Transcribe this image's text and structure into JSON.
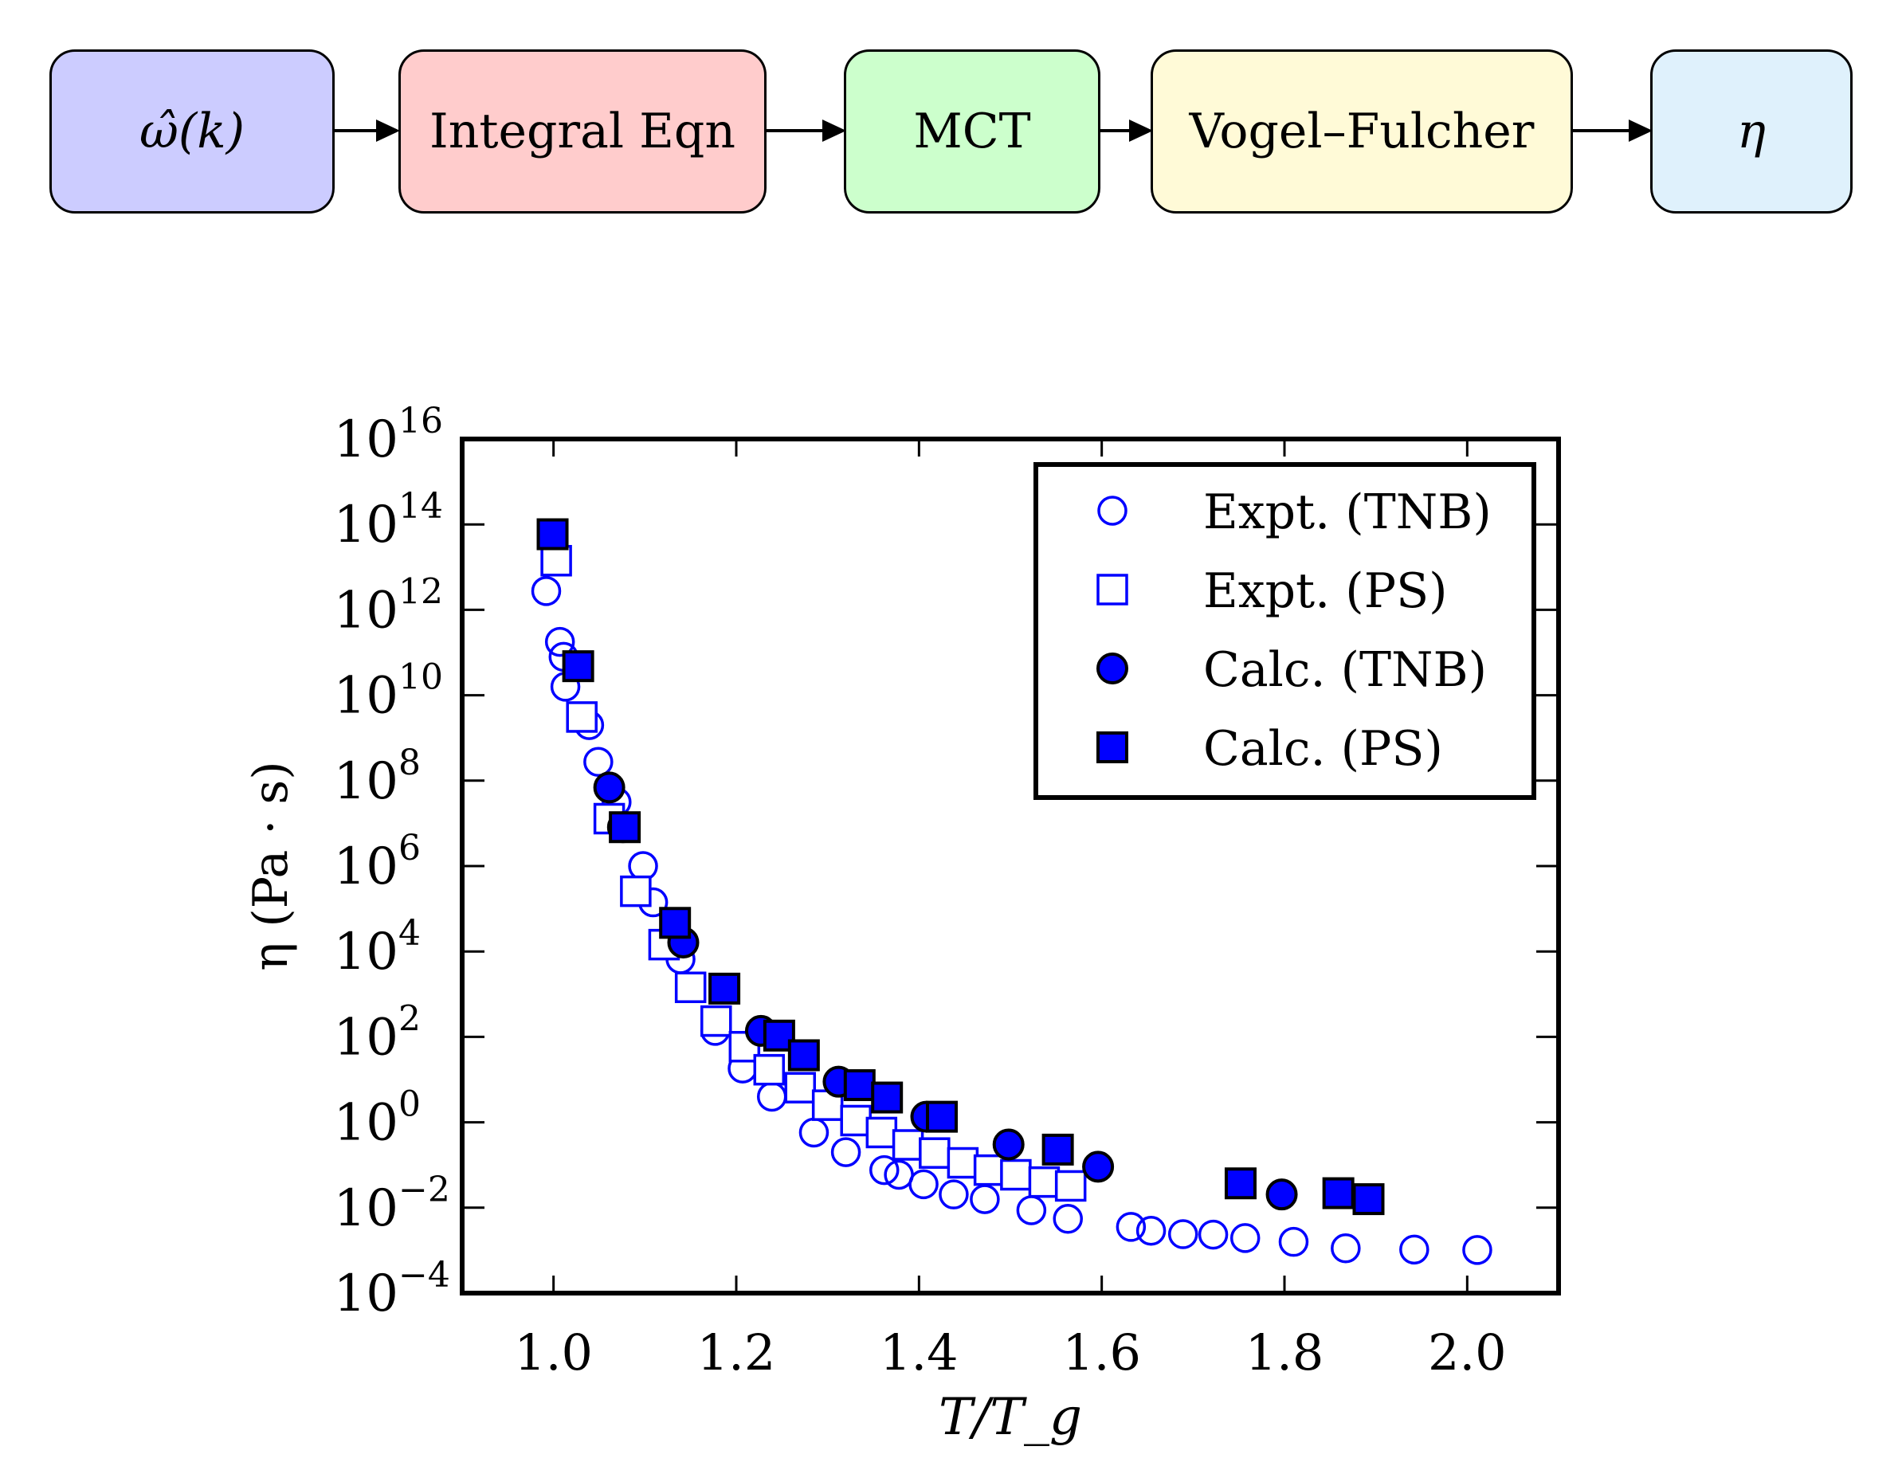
{
  "flow": {
    "nodes": [
      {
        "label": "ω̂(k)",
        "color": "#ccccff"
      },
      {
        "label": "Integral Eqn",
        "color": "#ffcccc"
      },
      {
        "label": "MCT",
        "color": "#ccffcc"
      },
      {
        "label": "Vogel–Fulcher",
        "color": "#fffad7"
      },
      {
        "label": "η",
        "color": "#dff1fc"
      }
    ]
  },
  "chart_data": {
    "type": "scatter",
    "title": "",
    "xlabel": "T/T_g",
    "ylabel": "η (Pa · s)",
    "yscale": "log",
    "xlim": [
      0.9,
      2.1
    ],
    "ylim_log10": [
      -4,
      16
    ],
    "xticks": [
      1.0,
      1.2,
      1.4,
      1.6,
      1.8,
      2.0
    ],
    "xtick_labels": [
      "1.0",
      "1.2",
      "1.4",
      "1.6",
      "1.8",
      "2.0"
    ],
    "yticks_log10": [
      -4,
      -2,
      0,
      2,
      4,
      6,
      8,
      10,
      12,
      14,
      16
    ],
    "ytick_exponents": [
      "−4",
      "−2",
      "0",
      "2",
      "4",
      "6",
      "8",
      "10",
      "12",
      "14",
      "16"
    ],
    "ytick_base": "10",
    "grid": false,
    "legend_position": "top-right",
    "series": [
      {
        "name": "Expt. (TNB)",
        "marker": "open-circle",
        "color": "#0000ff",
        "x": [
          0.992,
          1.007,
          1.011,
          1.013,
          1.039,
          1.049,
          1.069,
          1.098,
          1.109,
          1.139,
          1.177,
          1.207,
          1.239,
          1.285,
          1.32,
          1.362,
          1.378,
          1.405,
          1.438,
          1.472,
          1.523,
          1.563,
          1.632,
          1.654,
          1.689,
          1.722,
          1.757,
          1.81,
          1.867,
          1.942,
          2.011
        ],
        "log10_y": [
          12.44,
          11.25,
          10.9,
          10.2,
          9.3,
          8.44,
          7.5,
          6.0,
          5.15,
          3.82,
          2.14,
          1.26,
          0.6,
          -0.24,
          -0.7,
          -1.12,
          -1.23,
          -1.45,
          -1.69,
          -1.8,
          -2.06,
          -2.26,
          -2.45,
          -2.54,
          -2.62,
          -2.63,
          -2.71,
          -2.8,
          -2.95,
          -2.98,
          -2.99
        ]
      },
      {
        "name": "Expt. (PS)",
        "marker": "open-square",
        "color": "#0000ff",
        "x": [
          1.003,
          1.031,
          1.061,
          1.09,
          1.121,
          1.15,
          1.178,
          1.209,
          1.236,
          1.27,
          1.3,
          1.331,
          1.359,
          1.388,
          1.417,
          1.448,
          1.477,
          1.506,
          1.537,
          1.566
        ],
        "log10_y": [
          13.15,
          9.49,
          7.11,
          5.41,
          4.16,
          3.16,
          2.37,
          1.77,
          1.23,
          0.81,
          0.4,
          0.04,
          -0.24,
          -0.53,
          -0.72,
          -0.95,
          -1.12,
          -1.23,
          -1.4,
          -1.49
        ]
      },
      {
        "name": "Calc. (TNB)",
        "marker": "filled-circle",
        "color": "#0000ff",
        "x": [
          1.061,
          1.076,
          1.142,
          1.227,
          1.312,
          1.408,
          1.498,
          1.596,
          1.797
        ],
        "log10_y": [
          7.84,
          6.91,
          4.21,
          2.14,
          0.95,
          0.13,
          -0.52,
          -1.04,
          -1.69
        ]
      },
      {
        "name": "Calc. (PS)",
        "marker": "filled-square",
        "color": "#0000ff",
        "x": [
          0.999,
          1.027,
          1.078,
          1.133,
          1.187,
          1.247,
          1.274,
          1.335,
          1.365,
          1.425,
          1.552,
          1.752,
          1.859,
          1.892
        ],
        "log10_y": [
          13.77,
          10.68,
          6.91,
          4.67,
          3.13,
          2.03,
          1.57,
          0.87,
          0.58,
          0.13,
          -0.64,
          -1.43,
          -1.66,
          -1.8
        ]
      }
    ]
  }
}
